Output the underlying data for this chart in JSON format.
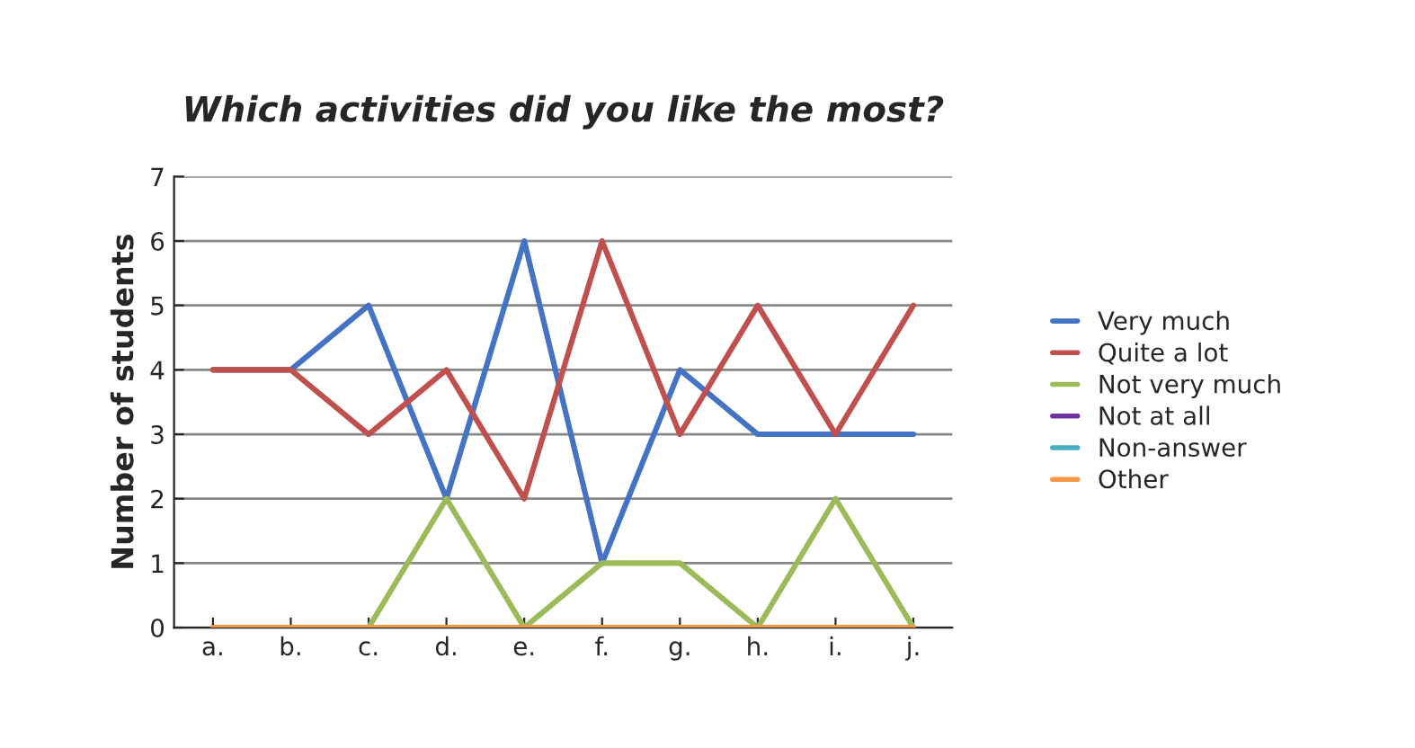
{
  "chart_data": {
    "type": "line",
    "title": "Which activities did you like the most?",
    "ylabel": "Number of students",
    "categories": [
      "a.",
      "b.",
      "c.",
      "d.",
      "e.",
      "f.",
      "g.",
      "h.",
      "i.",
      "j."
    ],
    "series": [
      {
        "name": "Very much",
        "color": "#4472c4",
        "values": [
          4,
          4,
          5,
          2,
          6,
          1,
          4,
          3,
          3,
          3
        ]
      },
      {
        "name": "Quite a lot",
        "color": "#c0504d",
        "values": [
          4,
          4,
          3,
          4,
          2,
          6,
          3,
          5,
          3,
          5
        ]
      },
      {
        "name": "Not very much",
        "color": "#9bbb59",
        "values": [
          0,
          0,
          0,
          2,
          0,
          1,
          1,
          0,
          2,
          0
        ]
      },
      {
        "name": "Not at all",
        "color": "#7030a0",
        "values": [
          null,
          null,
          null,
          null,
          null,
          null,
          null,
          null,
          null,
          null
        ]
      },
      {
        "name": "Non-answer",
        "color": "#4bacc6",
        "values": [
          null,
          null,
          null,
          null,
          null,
          null,
          null,
          null,
          null,
          null
        ]
      },
      {
        "name": "Other",
        "color": "#f79646",
        "values": [
          0,
          0,
          0,
          0,
          0,
          0,
          0,
          0,
          0,
          0
        ]
      }
    ],
    "ylim": [
      0,
      7
    ],
    "yticks": [
      0,
      1,
      2,
      3,
      4,
      5,
      6,
      7
    ],
    "grid": "y",
    "legend": "right",
    "marker": "none",
    "line_style": "solid"
  }
}
